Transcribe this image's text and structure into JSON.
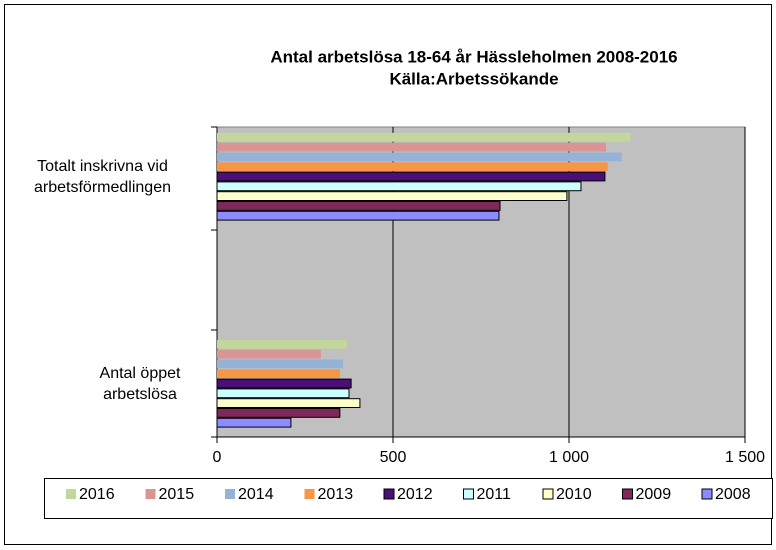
{
  "chart_data": {
    "type": "barh",
    "title": "Antal arbetslösa 18-64 år Hässleholmen 2008-2016",
    "subtitle": "Källa:Arbetssökande",
    "categories": [
      "Totalt inskrivna vid arbetsförmedlingen",
      "Antal öppet arbetslösa"
    ],
    "series": [
      {
        "name": "2016",
        "color": "#c3d69b",
        "values": [
          1175,
          369
        ]
      },
      {
        "name": "2015",
        "color": "#d99594",
        "values": [
          1105,
          295
        ]
      },
      {
        "name": "2014",
        "color": "#95b3d7",
        "values": [
          1150,
          358
        ]
      },
      {
        "name": "2013",
        "color": "#f79646",
        "values": [
          1110,
          349
        ]
      },
      {
        "name": "2012",
        "color": "#4b0f78",
        "edgecolor": "#000000",
        "values": [
          1102,
          381
        ]
      },
      {
        "name": "2011",
        "color": "#ccffff",
        "edgecolor": "#000000",
        "values": [
          1034,
          375
        ]
      },
      {
        "name": "2010",
        "color": "#ffffcc",
        "edgecolor": "#000000",
        "values": [
          994,
          406
        ]
      },
      {
        "name": "2009",
        "color": "#80285a",
        "edgecolor": "#000000",
        "values": [
          804,
          349
        ]
      },
      {
        "name": "2008",
        "color": "#8c8cff",
        "edgecolor": "#000000",
        "values": [
          801,
          210
        ]
      }
    ],
    "xlim": [
      0,
      1500
    ],
    "xticks": [
      0,
      500,
      {
        "value": 1000,
        "label": "1 000"
      },
      {
        "value": 1500,
        "label": "1 500"
      }
    ],
    "grid": true,
    "plot_background": "#c0c0c0",
    "legend": "bottom"
  }
}
